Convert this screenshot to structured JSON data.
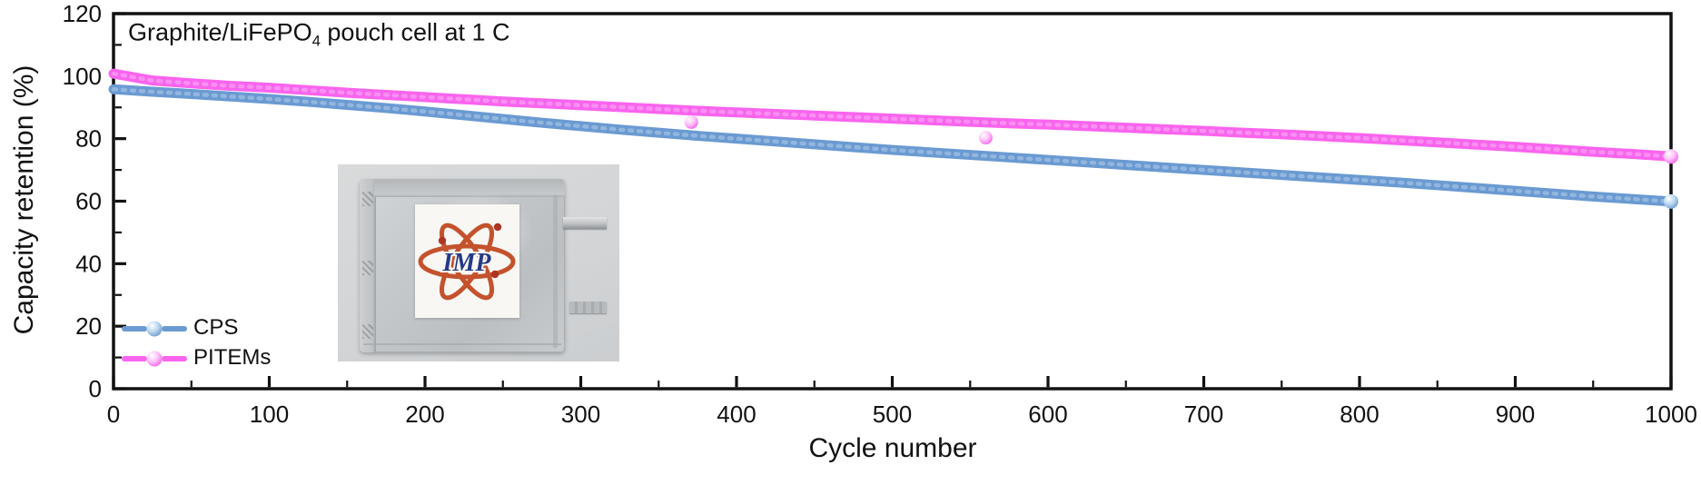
{
  "figure": {
    "annotation": {
      "prefix": "Graphite/LiFePO",
      "subscript": "4",
      "suffix": " pouch cell at 1 C"
    }
  },
  "chart_data": {
    "type": "scatter",
    "title": "Graphite/LiFePO4 pouch cell at 1 C",
    "xlabel": "Cycle number",
    "ylabel": "Capacity retention (%)",
    "xlim": [
      0,
      1000
    ],
    "ylim": [
      0,
      120
    ],
    "xticks": [
      0,
      100,
      200,
      300,
      400,
      500,
      600,
      700,
      800,
      900,
      1000
    ],
    "xminor_step": 50,
    "yticks": [
      0,
      20,
      40,
      60,
      80,
      100,
      120
    ],
    "yminor_step": 10,
    "grid": false,
    "legend_position": "lower-left",
    "axis_color": "#111111",
    "series": [
      {
        "name": "CPS",
        "color": "#6a9ad2",
        "ball": {
          "hi": "#ffffff",
          "mid": "#bdd8f0",
          "main": "#5b8fca"
        },
        "x": [
          0,
          25,
          50,
          75,
          100,
          125,
          150,
          175,
          200,
          225,
          250,
          275,
          300,
          325,
          350,
          375,
          400,
          425,
          450,
          475,
          500,
          525,
          550,
          575,
          600,
          625,
          650,
          675,
          700,
          725,
          750,
          775,
          800,
          825,
          850,
          875,
          900,
          925,
          950,
          975,
          1000
        ],
        "y": [
          95.8,
          95.0,
          94.3,
          93.5,
          92.7,
          91.8,
          90.8,
          89.8,
          88.7,
          87.5,
          86.3,
          85.1,
          84.0,
          82.9,
          81.9,
          80.9,
          80.0,
          79.1,
          78.2,
          77.3,
          76.4,
          75.6,
          74.8,
          74.0,
          73.2,
          72.4,
          71.6,
          70.8,
          70.0,
          69.2,
          68.4,
          67.6,
          66.8,
          66.0,
          65.1,
          64.2,
          63.3,
          62.4,
          61.5,
          60.7,
          59.9
        ],
        "outliers": []
      },
      {
        "name": "PITEMs",
        "color": "#f964ee",
        "ball": {
          "hi": "#ffffff",
          "mid": "#ffc3f9",
          "main": "#f051e6"
        },
        "x": [
          0,
          25,
          50,
          75,
          100,
          125,
          150,
          175,
          200,
          225,
          250,
          275,
          300,
          325,
          350,
          375,
          400,
          425,
          450,
          475,
          500,
          525,
          550,
          575,
          600,
          625,
          650,
          675,
          700,
          725,
          750,
          775,
          800,
          825,
          850,
          875,
          900,
          925,
          950,
          975,
          1000
        ],
        "y": [
          100.8,
          98.6,
          97.7,
          96.9,
          96.3,
          95.5,
          94.7,
          94.0,
          93.3,
          92.6,
          91.9,
          91.3,
          90.7,
          90.1,
          89.5,
          88.9,
          88.4,
          87.9,
          87.4,
          86.9,
          86.4,
          85.9,
          85.4,
          84.9,
          84.5,
          84.0,
          83.5,
          83.0,
          82.5,
          81.9,
          81.4,
          80.8,
          80.2,
          79.5,
          78.8,
          78.1,
          77.4,
          76.6,
          75.8,
          75.1,
          74.3
        ],
        "outliers": [
          [
            371,
            85.3
          ],
          [
            560,
            80.3
          ]
        ]
      }
    ]
  },
  "inset_photo": {
    "description": "silver pouch cell with IMP institute logo label",
    "logo_text": "IMP",
    "colors": {
      "bg": "#d8dadb",
      "pouch": "#c6c9cb",
      "label": "#f8f7f4",
      "tab": "#c0c3c5",
      "logo_orange": "#c4522d",
      "logo_red": "#ae3526",
      "logo_blue": "#243a85"
    }
  }
}
